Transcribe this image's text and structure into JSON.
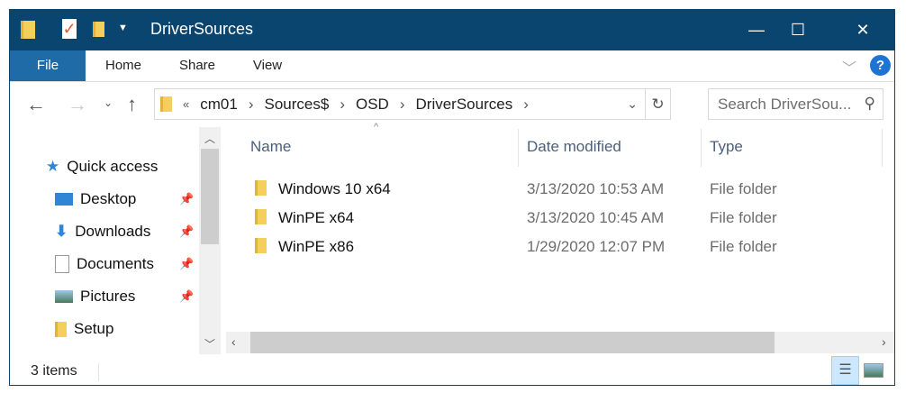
{
  "window": {
    "title": "DriverSources",
    "minimize": "—",
    "maximize": "☐",
    "close": "✕"
  },
  "ribbon": {
    "tabs": [
      "File",
      "Home",
      "Share",
      "View"
    ],
    "help": "?"
  },
  "address": {
    "overflow": "«",
    "crumbs": [
      "cm01",
      "Sources$",
      "OSD",
      "DriverSources"
    ],
    "search_placeholder": "Search DriverSou..."
  },
  "nav": {
    "items": [
      {
        "label": "Quick access",
        "icon": "star-icon"
      },
      {
        "label": "Desktop",
        "icon": "desktop-icon",
        "pinned": true
      },
      {
        "label": "Downloads",
        "icon": "download-icon",
        "pinned": true
      },
      {
        "label": "Documents",
        "icon": "documents-icon",
        "pinned": true
      },
      {
        "label": "Pictures",
        "icon": "pictures-icon",
        "pinned": true
      },
      {
        "label": "Setup",
        "icon": "folder-icon"
      }
    ]
  },
  "columns": [
    "Name",
    "Date modified",
    "Type"
  ],
  "files": [
    {
      "name": "Windows 10 x64",
      "date": "3/13/2020 10:53 AM",
      "type": "File folder"
    },
    {
      "name": "WinPE x64",
      "date": "3/13/2020 10:45 AM",
      "type": "File folder"
    },
    {
      "name": "WinPE x86",
      "date": "1/29/2020 12:07 PM",
      "type": "File folder"
    }
  ],
  "status": {
    "count": "3 items"
  },
  "colors": {
    "titlebar": "#0a4570",
    "file_tab": "#1e6ba8"
  }
}
